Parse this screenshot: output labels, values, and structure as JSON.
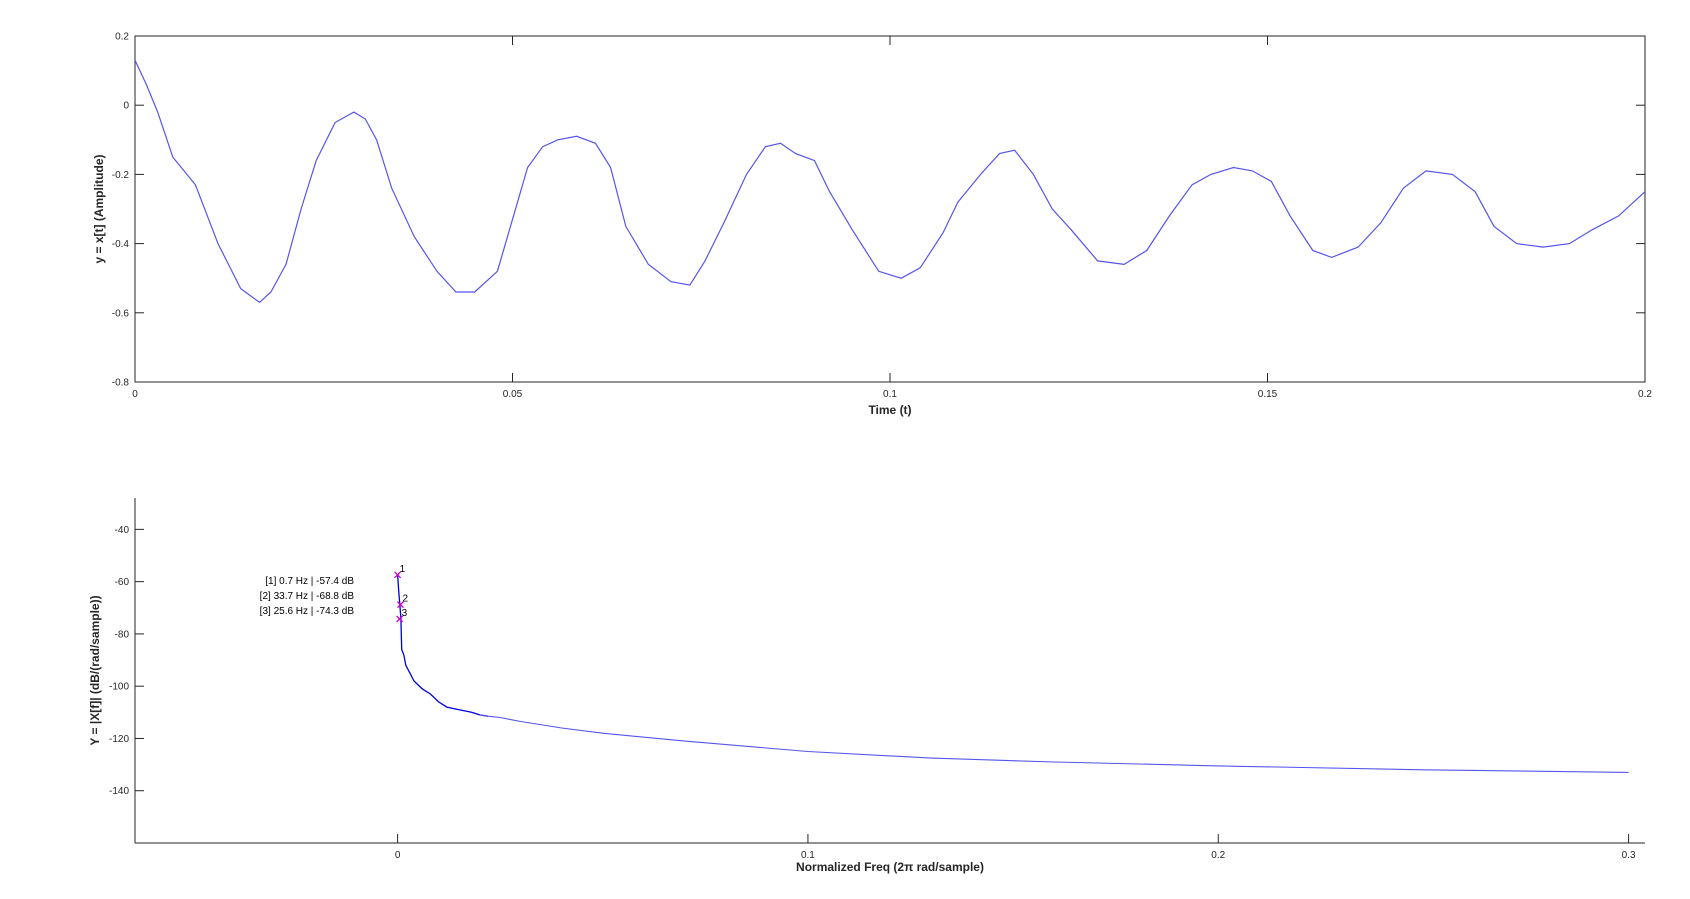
{
  "colors": {
    "line": "#5555ee",
    "line_dark": "#0000dd",
    "marker": "#cc00cc",
    "axis": "#262626"
  },
  "chart_data": [
    {
      "type": "line",
      "title": "",
      "xlabel": "Time (t)",
      "ylabel": "y = x[t] (Amplitude)",
      "xlim": [
        0,
        0.2
      ],
      "ylim": [
        -0.8,
        0.2
      ],
      "xticks": [
        0,
        0.05,
        0.1,
        0.15,
        0.2
      ],
      "xtick_labels": [
        "0",
        "0.05",
        "0.1",
        "0.15",
        "0.2"
      ],
      "yticks": [
        -0.8,
        -0.6,
        -0.4,
        -0.2,
        0,
        0.2
      ],
      "ytick_labels": [
        "-0.8",
        "-0.6",
        "-0.4",
        "-0.2",
        "0",
        "0.2"
      ],
      "grid": false,
      "series": [
        {
          "x": [
            0,
            0.0015,
            0.003,
            0.005,
            0.008,
            0.011,
            0.014,
            0.0165,
            0.018,
            0.02,
            0.022,
            0.024,
            0.0265,
            0.029,
            0.0305,
            0.032,
            0.034,
            0.037,
            0.04,
            0.0425,
            0.045,
            0.048,
            0.05,
            0.052,
            0.054,
            0.056,
            0.0585,
            0.061,
            0.063,
            0.065,
            0.068,
            0.071,
            0.0735,
            0.0755,
            0.078,
            0.081,
            0.0835,
            0.0855,
            0.0875,
            0.09,
            0.092,
            0.095,
            0.0985,
            0.1015,
            0.104,
            0.107,
            0.109,
            0.112,
            0.1145,
            0.1165,
            0.119,
            0.1215,
            0.124,
            0.1275,
            0.131,
            0.134,
            0.137,
            0.14,
            0.1425,
            0.1455,
            0.148,
            0.1505,
            0.153,
            0.156,
            0.1585,
            0.162,
            0.165,
            0.168,
            0.171,
            0.1745,
            0.1775,
            0.18,
            0.183,
            0.1865,
            0.19,
            0.193,
            0.1965,
            0.2
          ],
          "y": [
            0.13,
            0.06,
            -0.02,
            -0.15,
            -0.23,
            -0.4,
            -0.53,
            -0.57,
            -0.54,
            -0.46,
            -0.3,
            -0.16,
            -0.05,
            -0.02,
            -0.04,
            -0.1,
            -0.24,
            -0.38,
            -0.48,
            -0.54,
            -0.54,
            -0.48,
            -0.33,
            -0.18,
            -0.12,
            -0.1,
            -0.09,
            -0.11,
            -0.18,
            -0.35,
            -0.46,
            -0.51,
            -0.52,
            -0.45,
            -0.34,
            -0.2,
            -0.12,
            -0.11,
            -0.14,
            -0.16,
            -0.25,
            -0.36,
            -0.48,
            -0.5,
            -0.47,
            -0.37,
            -0.28,
            -0.2,
            -0.14,
            -0.13,
            -0.2,
            -0.3,
            -0.36,
            -0.45,
            -0.46,
            -0.42,
            -0.32,
            -0.23,
            -0.2,
            -0.18,
            -0.19,
            -0.22,
            -0.32,
            -0.42,
            -0.44,
            -0.41,
            -0.34,
            -0.24,
            -0.19,
            -0.2,
            -0.25,
            -0.35,
            -0.4,
            -0.41,
            -0.4,
            -0.36,
            -0.32,
            -0.25
          ]
        }
      ]
    },
    {
      "type": "line",
      "title": "",
      "xlabel": "Normalized Freq (2π rad/sample)",
      "ylabel": "Y = |X[f]| (dB/(rad/sample))",
      "xlim": [
        -0.064,
        0.304
      ],
      "ylim": [
        -160,
        -28
      ],
      "xticks": [
        0,
        0.1,
        0.2,
        0.3
      ],
      "xtick_labels": [
        "0",
        "0.1",
        "0.2",
        "0.3"
      ],
      "yticks": [
        -140,
        -120,
        -100,
        -80,
        -60,
        -40
      ],
      "ytick_labels": [
        "-140",
        "-120",
        "-100",
        "-80",
        "-60",
        "-40"
      ],
      "grid": false,
      "series": [
        {
          "x": [
            0,
            0.0003,
            0.0006,
            0.0008,
            0.001,
            0.0015,
            0.002,
            0.003,
            0.004,
            0.006,
            0.008,
            0.01,
            0.012,
            0.015,
            0.018,
            0.02,
            0.022,
            0.025,
            0.03,
            0.04,
            0.05,
            0.07,
            0.1,
            0.13,
            0.16,
            0.2,
            0.25,
            0.3
          ],
          "y": [
            -57.4,
            -64,
            -70,
            -74.3,
            -86,
            -88,
            -92,
            -95,
            -98,
            -101,
            -103,
            -106,
            -108,
            -109,
            -110,
            -111,
            -111.5,
            -112,
            -113.5,
            -116,
            -118,
            -121,
            -125,
            -127.5,
            -129,
            -130.5,
            -132,
            -133
          ]
        }
      ],
      "markers": [
        {
          "label": "1",
          "x": 0.0,
          "y": -57.4
        },
        {
          "label": "2",
          "x": 0.0007,
          "y": -68.8
        },
        {
          "label": "3",
          "x": 0.0005,
          "y": -74.3
        }
      ],
      "marker_legend": [
        "[1] 0.7 Hz | -57.4 dB",
        "[2] 33.7 Hz | -68.8 dB",
        "[3] 25.6 Hz | -74.3 dB"
      ]
    }
  ]
}
